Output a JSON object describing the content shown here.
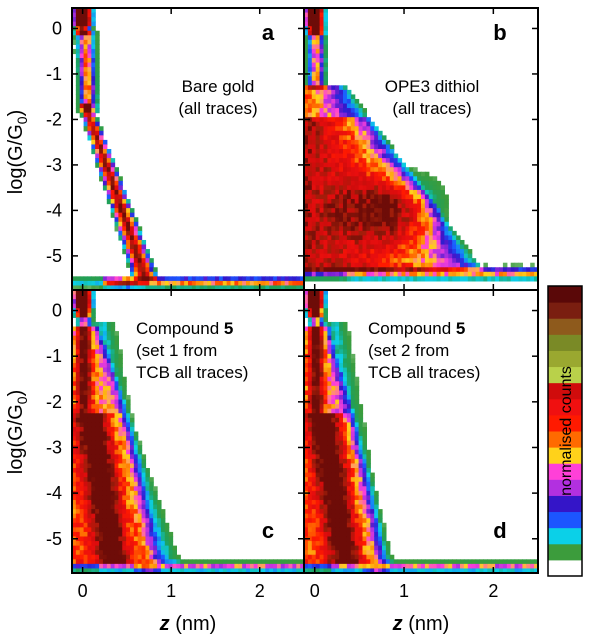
{
  "chart_data": {
    "type": "heatmap",
    "description_of_axes": "2D conductance-distance histograms, 2x2 panel grid sharing axes",
    "x_axis": {
      "label_italic": "z",
      "label_unit": " (nm)",
      "ticks": [
        0,
        1,
        2
      ],
      "tick_labels": [
        "0",
        "1",
        "2"
      ],
      "range": [
        -0.12,
        2.5
      ]
    },
    "y_axis": {
      "label": "log(G/G",
      "label_sub": "0",
      "label_close": ")",
      "ticks": [
        0,
        -1,
        -2,
        -3,
        -4,
        -5
      ],
      "tick_labels": [
        "0",
        "-1",
        "-2",
        "-3",
        "-4",
        "-5"
      ],
      "range": [
        -5.75,
        0.45
      ]
    },
    "panels": [
      {
        "id": "a",
        "letter": "a",
        "annotation_lines": [
          "Bare gold",
          "(all traces)"
        ],
        "annotation_bold": "",
        "pattern": "bare_gold",
        "features": {
          "decay_slope_per_nm": -5.4,
          "plateau_log_G": null,
          "noise_floor_log_G": -5.6
        }
      },
      {
        "id": "b",
        "letter": "b",
        "annotation_lines": [
          "OPE3 dithiol",
          "(all traces)"
        ],
        "annotation_bold": "",
        "pattern": "ope3",
        "features": {
          "decay_slope_per_nm": -2.0,
          "plateau_log_G": -4.0,
          "plateau_end_nm": 1.4,
          "noise_floor_log_G": -5.4
        }
      },
      {
        "id": "c",
        "letter": "c",
        "annotation_lines": [
          "Compound ",
          "(set 1 from",
          "TCB all traces)"
        ],
        "annotation_bold": "5",
        "pattern": "compound5_set1",
        "features": {
          "decay_slope_per_nm": -3.0,
          "plateau_log_G": -3.2,
          "noise_floor_log_G": -5.6
        }
      },
      {
        "id": "d",
        "letter": "d",
        "annotation_lines": [
          "Compound ",
          "(set 2 from",
          "TCB all traces)"
        ],
        "annotation_bold": "5",
        "pattern": "compound5_set2",
        "features": {
          "decay_slope_per_nm": -3.4,
          "plateau_log_G": -3.4,
          "noise_floor_log_G": -5.6
        }
      }
    ],
    "colorbar": {
      "label": "normalised counts",
      "colors": [
        "#ffffff",
        "#3c9c3c",
        "#0bd0e8",
        "#1c55ff",
        "#3415c8",
        "#b230e0",
        "#ff40d8",
        "#ffd21a",
        "#ff6a00",
        "#ff1a00",
        "#f01010",
        "#d00c0c",
        "#b9d14a",
        "#9aa830",
        "#7a8a26",
        "#8e5a1c",
        "#7a1e10",
        "#5a0808"
      ]
    }
  }
}
